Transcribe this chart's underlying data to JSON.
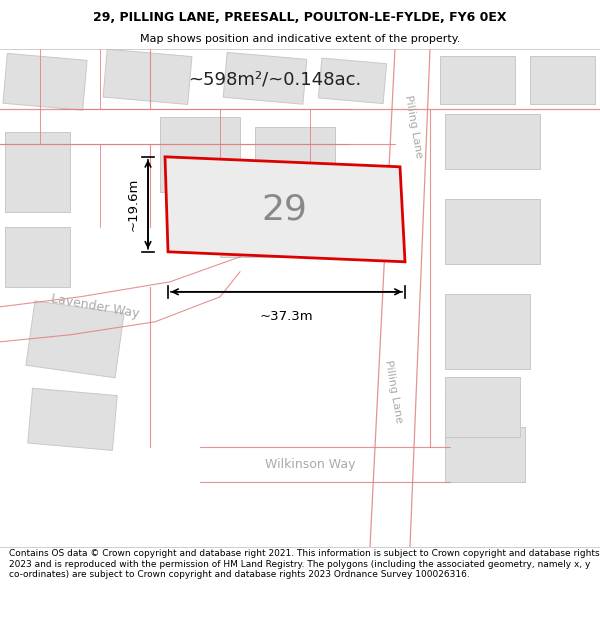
{
  "title_line1": "29, PILLING LANE, PREESALL, POULTON-LE-FYLDE, FY6 0EX",
  "title_line2": "Map shows position and indicative extent of the property.",
  "footer_text": "Contains OS data © Crown copyright and database right 2021. This information is subject to Crown copyright and database rights 2023 and is reproduced with the permission of HM Land Registry. The polygons (including the associated geometry, namely x, y co-ordinates) are subject to Crown copyright and database rights 2023 Ordnance Survey 100026316.",
  "map_bg": "#f2f2f2",
  "building_fill": "#e0e0e0",
  "building_edge": "#c8c8c8",
  "road_fill": "#ffffff",
  "road_line": "#e08080",
  "plot_fill": "#ececec",
  "plot_edge": "#dd0000",
  "plot_edge_lw": 2.0,
  "area_label": "~598m²/~0.148ac.",
  "plot_number": "29",
  "width_label": "~37.3m",
  "height_label": "~19.6m",
  "road_name_lavender": "Lavender Way",
  "road_name_wilkinson": "Wilkinson Way",
  "road_name_pilling": "Pilling Lane",
  "label_color": "#aaaaaa",
  "dim_color": "#000000",
  "area_color": "#222222",
  "title_fontsize": 9.0,
  "subtitle_fontsize": 8.0,
  "footer_fontsize": 6.5
}
